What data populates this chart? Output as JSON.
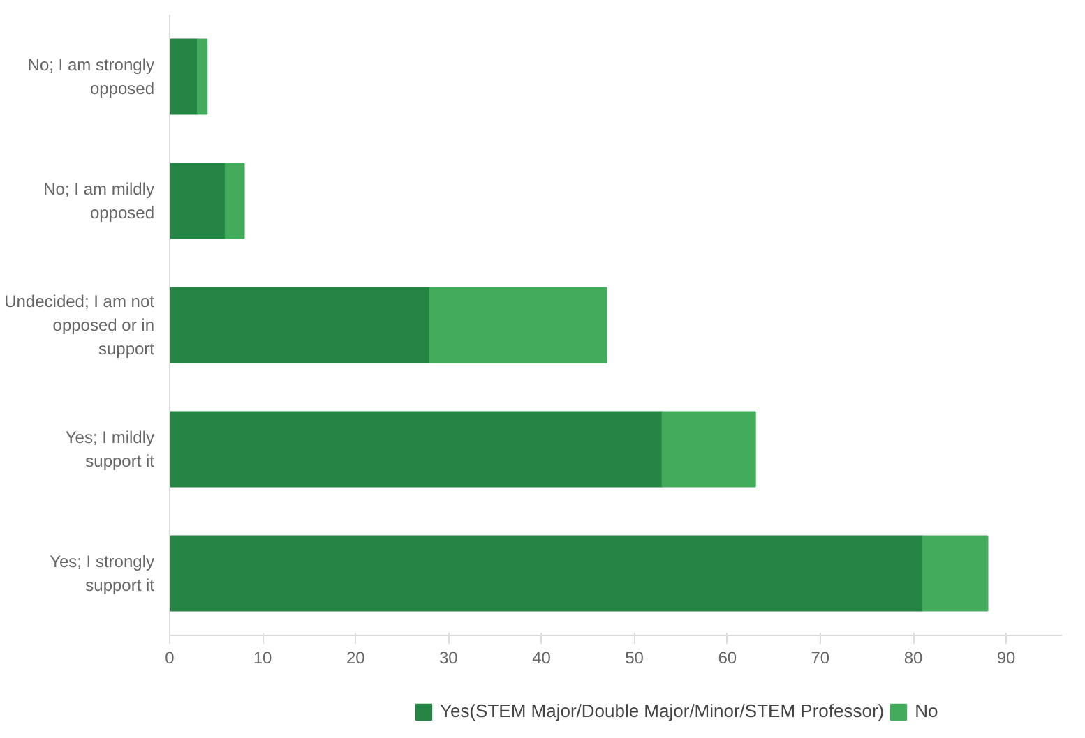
{
  "chart_data": {
    "type": "bar",
    "orientation": "horizontal",
    "stacked": true,
    "categories": [
      "No; I am strongly opposed",
      "No; I am mildly opposed",
      "Undecided; I am not opposed or in support",
      "Yes; I mildly support it",
      "Yes; I strongly support it"
    ],
    "series": [
      {
        "name": "Yes(STEM Major/Double Major/Minor/STEM Professor)",
        "color": "#248444",
        "values": [
          3,
          6,
          28,
          53,
          81
        ]
      },
      {
        "name": "No",
        "color": "#42ac5c",
        "values": [
          1,
          2,
          19,
          10,
          7
        ]
      }
    ],
    "xlim": [
      0,
      96
    ],
    "xticks": [
      0,
      10,
      20,
      30,
      40,
      50,
      60,
      70,
      80,
      90
    ],
    "grid": false,
    "legend": "bottom"
  }
}
